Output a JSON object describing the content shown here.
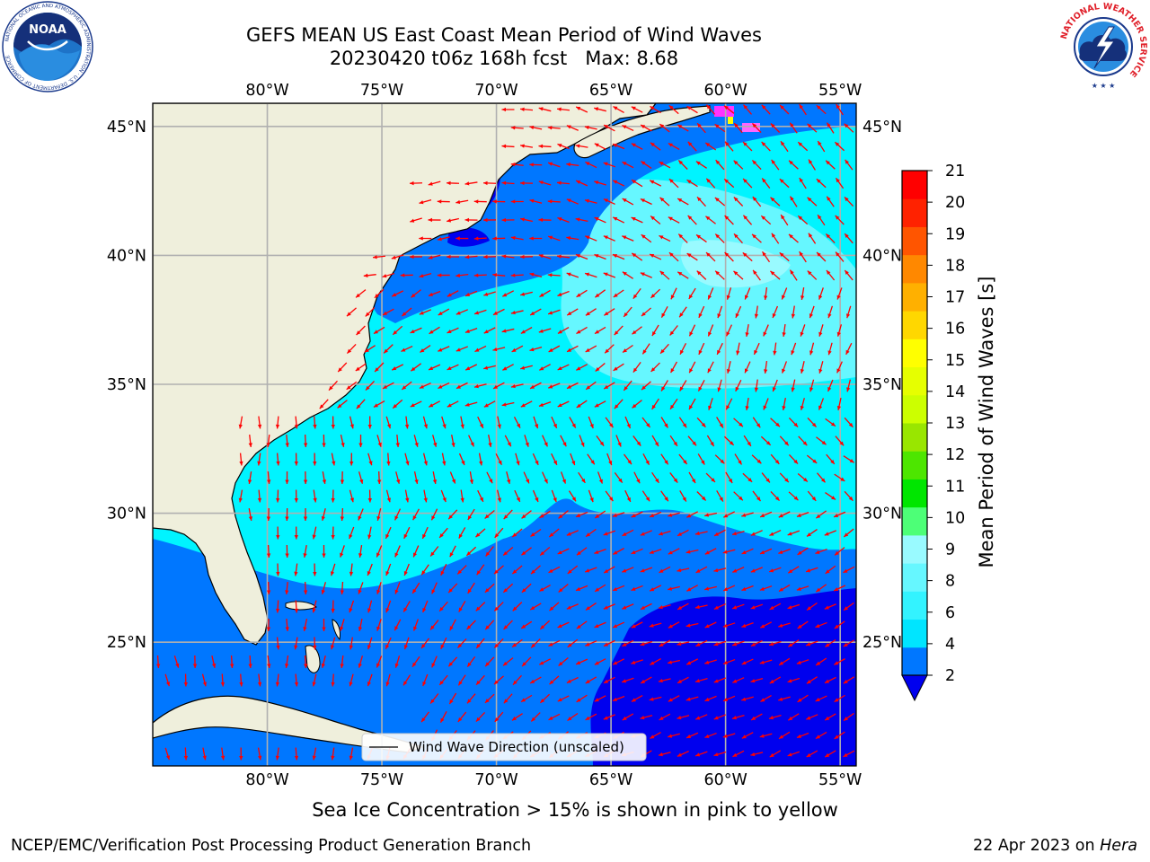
{
  "title": {
    "line1": "GEFS MEAN US East Coast Mean Period of Wind Waves",
    "line2": "20230420 t06z 168h fcst   Max: 8.68"
  },
  "map": {
    "lon_range": [
      -85,
      -54.3
    ],
    "lat_range": [
      20.2,
      45.9
    ],
    "lon_ticks": [
      {
        "value": -80,
        "label": "80°W"
      },
      {
        "value": -75,
        "label": "75°W"
      },
      {
        "value": -70,
        "label": "70°W"
      },
      {
        "value": -65,
        "label": "65°W"
      },
      {
        "value": -60,
        "label": "60°W"
      },
      {
        "value": -55,
        "label": "55°W"
      }
    ],
    "lat_ticks": [
      {
        "value": 45,
        "label": "45°N"
      },
      {
        "value": 40,
        "label": "40°N"
      },
      {
        "value": 35,
        "label": "35°N"
      },
      {
        "value": 30,
        "label": "30°N"
      },
      {
        "value": 25,
        "label": "25°N"
      }
    ],
    "gridlines": true,
    "land_color": "#efefdc",
    "vector_color": "#ff0000"
  },
  "legend": {
    "label": "Wind Wave Direction (unscaled)",
    "placement": "bottom-center"
  },
  "colorbar": {
    "label": "Mean Period of Wind Waves [s]",
    "ticks": [
      "2",
      "4",
      "6",
      "8",
      "9",
      "10",
      "11",
      "12",
      "13",
      "14",
      "15",
      "16",
      "17",
      "18",
      "19",
      "20",
      "21"
    ],
    "colors": [
      "#0077ff",
      "#00e5ff",
      "#33f3ff",
      "#66f7ff",
      "#99faff",
      "#4dff77",
      "#00e600",
      "#4de600",
      "#99e600",
      "#ccff00",
      "#e6ff00",
      "#ffff00",
      "#ffd700",
      "#ffb000",
      "#ff8800",
      "#ff5500",
      "#ff2200",
      "#ff0000"
    ],
    "under_color": "#0000ee"
  },
  "chart_data": {
    "type": "heatmap",
    "variable": "Mean Period of Wind Waves [s]",
    "max": 8.68,
    "regions": [
      {
        "area": "northwest Atlantic near coast north of 38°N",
        "period_s_range": [
          2,
          4
        ]
      },
      {
        "area": "central Atlantic 30°N–45°N",
        "period_s_range": [
          4,
          8
        ]
      },
      {
        "area": "Florida / Bahamas 24°N–30°N",
        "period_s_range": [
          2,
          4
        ]
      },
      {
        "area": "southeast 60°W–54°W, 20°N–27°N",
        "period_s_range": [
          0,
          2
        ]
      }
    ]
  },
  "caption": "Sea Ice Concentration > 15% is shown in pink to yellow",
  "footer": {
    "left": "NCEP/EMC/Verification Post Processing Product Generation Branch",
    "date": "22 Apr 2023 on ",
    "machine": "Hera"
  },
  "logos": {
    "noaa": "NOAA",
    "noaa_ring": "NATIONAL OCEANIC AND ATMOSPHERIC ADMINISTRATION · U.S. DEPARTMENT OF COMMERCE",
    "nws_ring": "NATIONAL WEATHER SERVICE"
  }
}
